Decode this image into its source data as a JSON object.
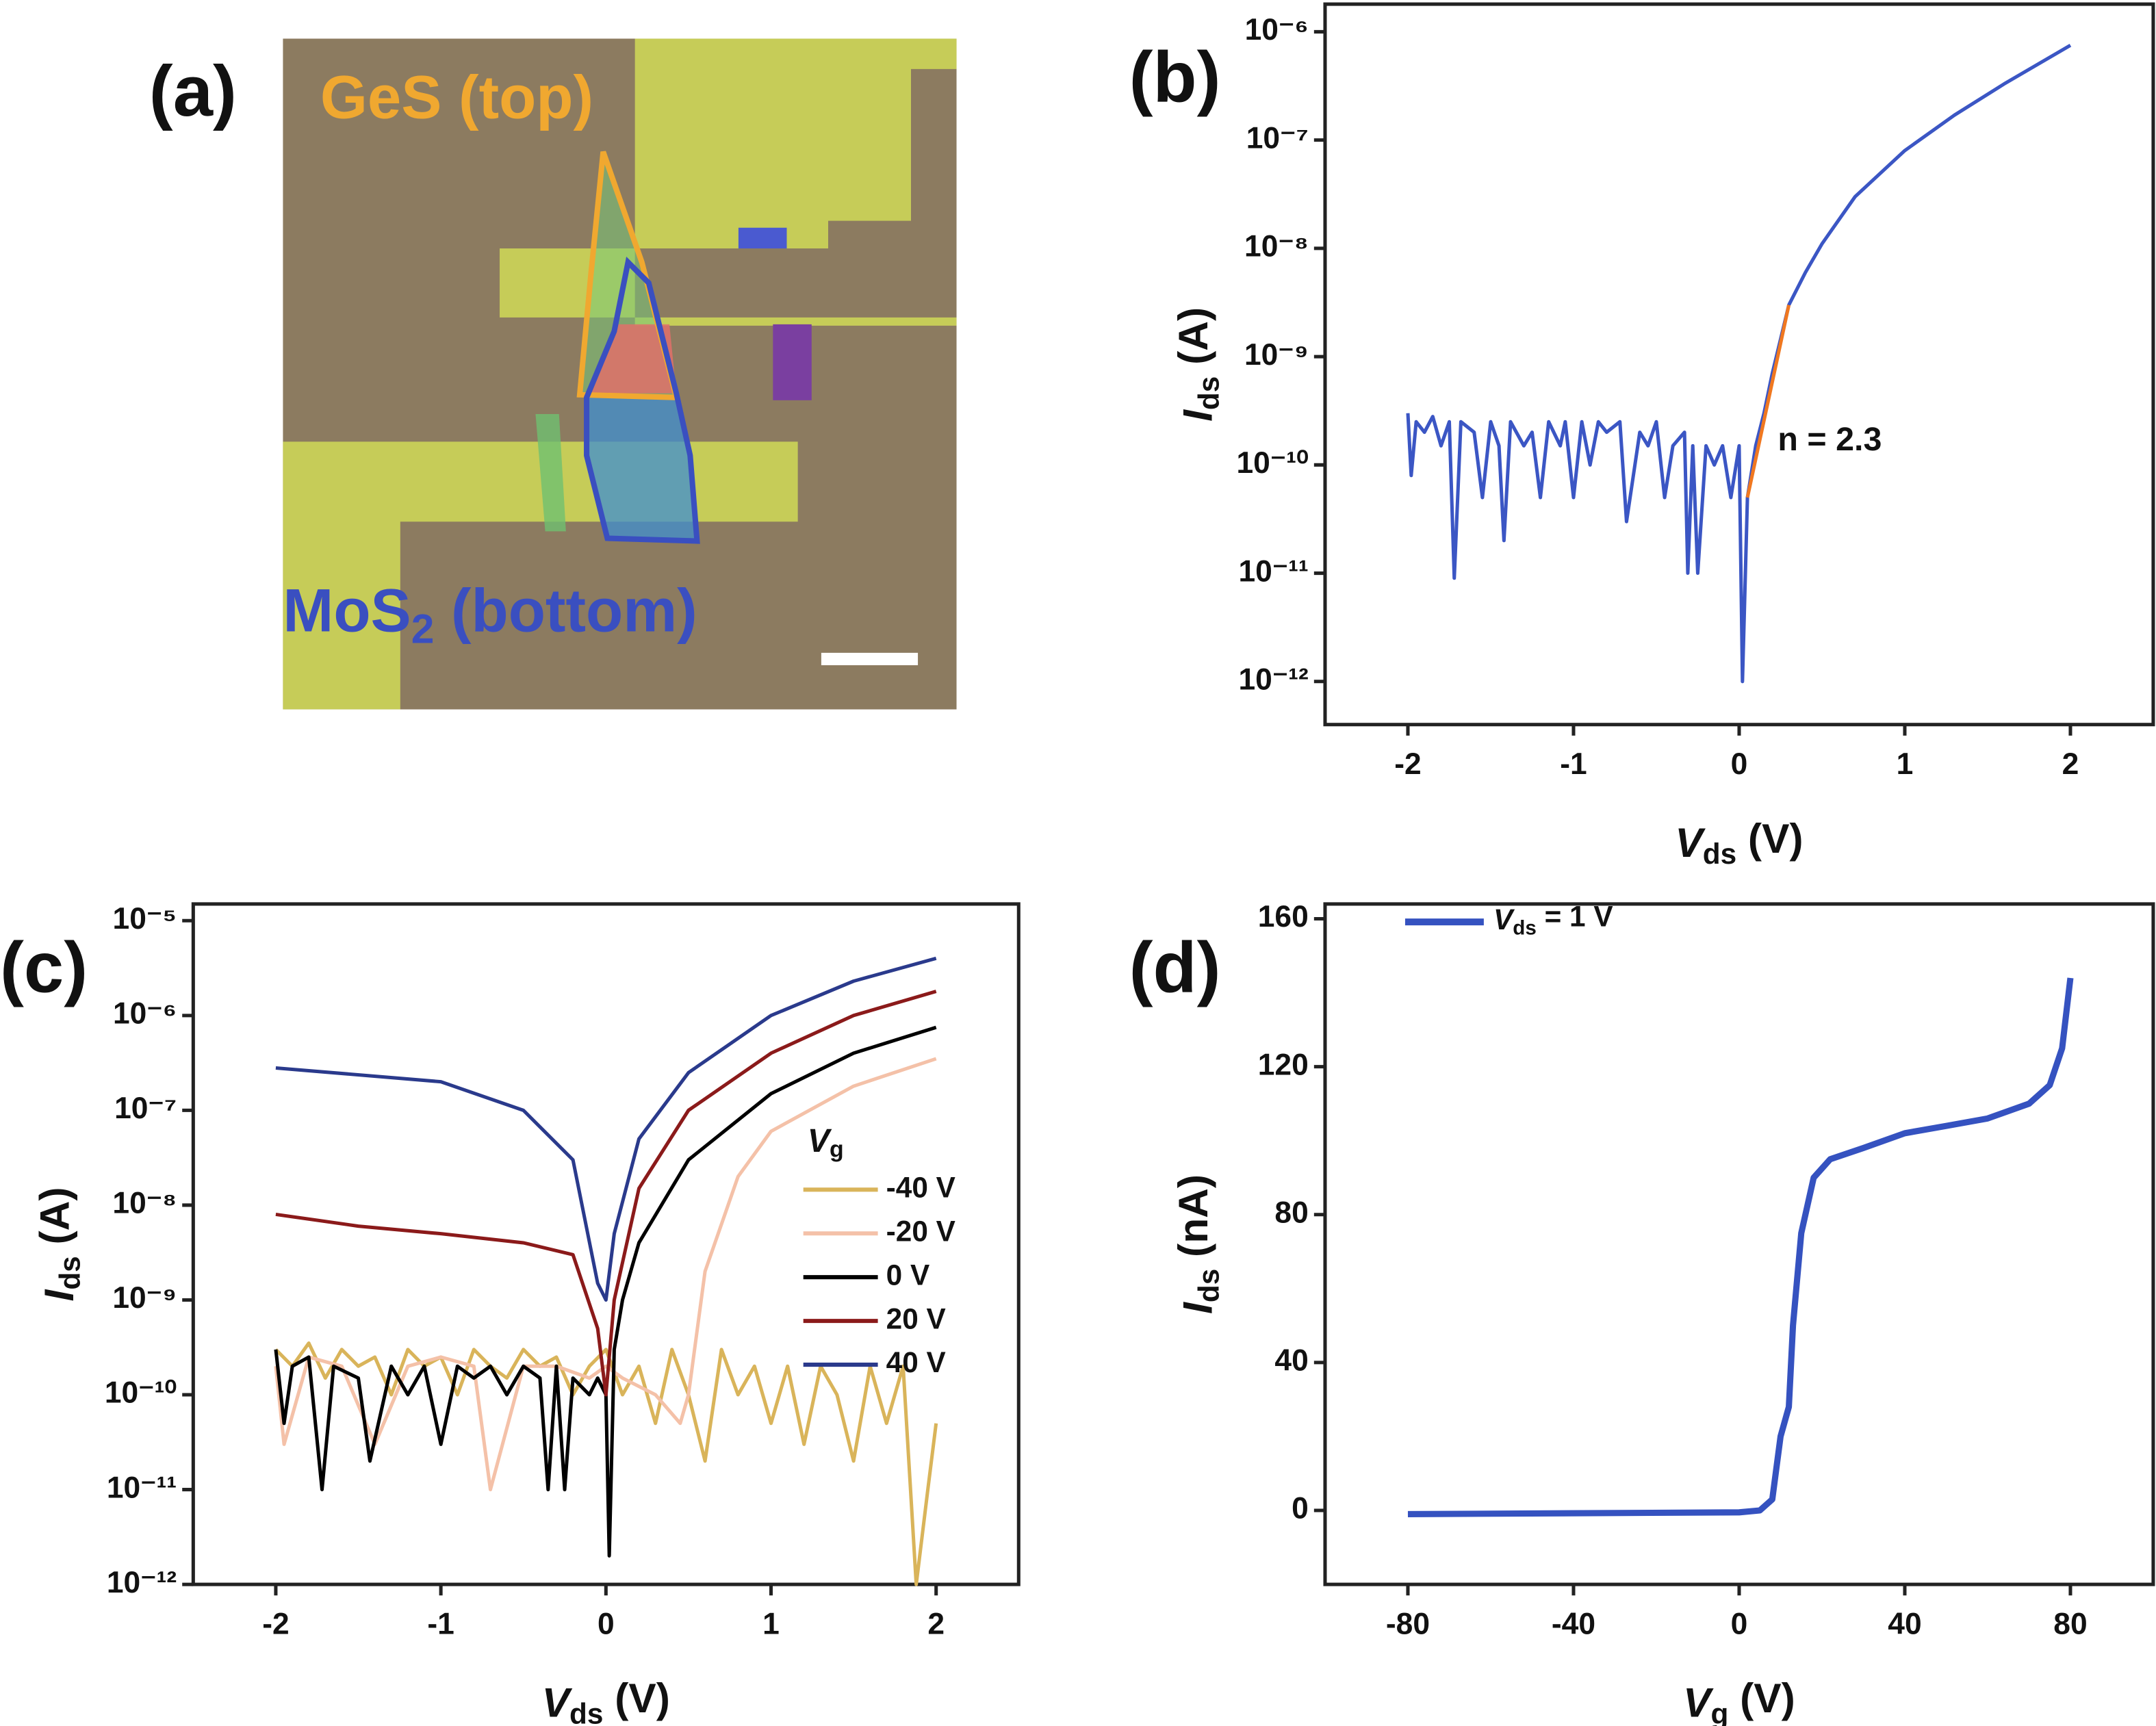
{
  "image_panel": {
    "panel_label": "(a)",
    "top_label": "GeS (top)",
    "bottom_label": {
      "main": "MoS",
      "sub": "2",
      "rest": " (bottom)"
    }
  },
  "chart_data": [
    {
      "type": "line",
      "panel_label": "(b)",
      "ylog": true,
      "xlabel": {
        "main": "V",
        "sub": "ds",
        "unit": " (V)"
      },
      "ylabel": {
        "main": "I",
        "sub": "ds",
        "unit": " (A)"
      },
      "xlim": [
        -2.5,
        2.5
      ],
      "xticks": [
        -2,
        -1,
        0,
        1,
        2
      ],
      "ylim": [
        4e-13,
        1.8e-06
      ],
      "yticks": [
        {
          "value": 1e-12,
          "label": "10⁻¹²"
        },
        {
          "value": 1e-11,
          "label": "10⁻¹¹"
        },
        {
          "value": 1e-10,
          "label": "10⁻¹⁰"
        },
        {
          "value": 1e-09,
          "label": "10⁻⁹"
        },
        {
          "value": 1e-08,
          "label": "10⁻⁸"
        },
        {
          "value": 1e-07,
          "label": "10⁻⁷"
        },
        {
          "value": 1e-06,
          "label": "10⁻⁶"
        }
      ],
      "annotation": "n = 2.3",
      "series": [
        {
          "color": "#3b56c4",
          "x": [
            -2,
            -1.98,
            -1.95,
            -1.9,
            -1.85,
            -1.8,
            -1.75,
            -1.72,
            -1.68,
            -1.6,
            -1.55,
            -1.5,
            -1.45,
            -1.42,
            -1.38,
            -1.3,
            -1.25,
            -1.2,
            -1.15,
            -1.08,
            -1.05,
            -1,
            -0.95,
            -0.9,
            -0.85,
            -0.8,
            -0.72,
            -0.68,
            -0.6,
            -0.55,
            -0.5,
            -0.45,
            -0.4,
            -0.33,
            -0.31,
            -0.28,
            -0.25,
            -0.2,
            -0.15,
            -0.1,
            -0.05,
            0,
            0.02,
            0.05,
            0.1,
            0.15,
            0.2,
            0.3,
            0.4,
            0.5,
            0.7,
            1,
            1.3,
            1.6,
            2
          ],
          "values": [
            3e-10,
            8e-11,
            2.5e-10,
            2e-10,
            2.8e-10,
            1.5e-10,
            2.5e-10,
            9e-12,
            2.5e-10,
            2e-10,
            5e-11,
            2.5e-10,
            1.5e-10,
            2e-11,
            2.5e-10,
            1.5e-10,
            2e-10,
            5e-11,
            2.5e-10,
            1.5e-10,
            2.5e-10,
            5e-11,
            2.5e-10,
            1e-10,
            2.5e-10,
            2e-10,
            2.5e-10,
            3e-11,
            2e-10,
            1.5e-10,
            2.5e-10,
            5e-11,
            1.5e-10,
            2e-10,
            1e-11,
            1.5e-10,
            1e-11,
            1.5e-10,
            1e-10,
            1.5e-10,
            5e-11,
            1.5e-10,
            1e-12,
            5e-11,
            1.5e-10,
            3e-10,
            7e-10,
            3e-09,
            6e-09,
            1.1e-08,
            3e-08,
            8e-08,
            1.7e-07,
            3.3e-07,
            7.5e-07
          ]
        },
        {
          "color": "#f07820",
          "x": [
            0.05,
            0.3
          ],
          "values": [
            5e-11,
            3e-09
          ]
        }
      ]
    },
    {
      "type": "line",
      "panel_label": "(c)",
      "ylog": true,
      "xlabel": {
        "main": "V",
        "sub": "ds",
        "unit": " (V)"
      },
      "ylabel": {
        "main": "I",
        "sub": "ds",
        "unit": " (A)"
      },
      "xlim": [
        -2.5,
        2.5
      ],
      "xticks": [
        -2,
        -1,
        0,
        1,
        2
      ],
      "ylim": [
        1e-12,
        1.5e-05
      ],
      "yticks": [
        {
          "value": 1e-12,
          "label": "10⁻¹²"
        },
        {
          "value": 1e-11,
          "label": "10⁻¹¹"
        },
        {
          "value": 1e-10,
          "label": "10⁻¹⁰"
        },
        {
          "value": 1e-09,
          "label": "10⁻⁹"
        },
        {
          "value": 1e-08,
          "label": "10⁻⁸"
        },
        {
          "value": 1e-07,
          "label": "10⁻⁷"
        },
        {
          "value": 1e-06,
          "label": "10⁻⁶"
        },
        {
          "value": 1e-05,
          "label": "10⁻⁵"
        }
      ],
      "legend_title": {
        "main": "V",
        "sub": "g"
      },
      "series": [
        {
          "name": "-40 V",
          "color": "#d9b45a",
          "x": [
            -2,
            -1.9,
            -1.8,
            -1.7,
            -1.6,
            -1.5,
            -1.4,
            -1.3,
            -1.2,
            -1.1,
            -1,
            -0.9,
            -0.8,
            -0.7,
            -0.6,
            -0.5,
            -0.4,
            -0.3,
            -0.2,
            -0.1,
            0,
            0.1,
            0.2,
            0.3,
            0.4,
            0.5,
            0.6,
            0.7,
            0.8,
            0.9,
            1,
            1.1,
            1.2,
            1.3,
            1.4,
            1.5,
            1.6,
            1.7,
            1.8,
            1.88,
            1.95,
            2
          ],
          "values": [
            3e-10,
            2e-10,
            3.5e-10,
            1.5e-10,
            3e-10,
            2e-10,
            2.5e-10,
            1e-10,
            3e-10,
            2e-10,
            2.5e-10,
            1e-10,
            3e-10,
            2e-10,
            1.5e-10,
            3e-10,
            2e-10,
            2.5e-10,
            1e-10,
            2e-10,
            3e-10,
            1e-10,
            2e-10,
            5e-11,
            3e-10,
            1e-10,
            2e-11,
            3e-10,
            1e-10,
            2e-10,
            5e-11,
            2e-10,
            3e-11,
            2e-10,
            1e-10,
            2e-11,
            2e-10,
            5e-11,
            2e-10,
            1e-12,
            1e-11,
            5e-11
          ]
        },
        {
          "name": "-20 V",
          "color": "#f4c1a8",
          "x": [
            -2,
            -1.95,
            -1.8,
            -1.6,
            -1.4,
            -1.2,
            -1,
            -0.8,
            -0.7,
            -0.5,
            -0.3,
            -0.1,
            0,
            0.1,
            0.3,
            0.45,
            0.5,
            0.6,
            0.8,
            1,
            1.5,
            2
          ],
          "values": [
            2e-10,
            3e-11,
            2.5e-10,
            2e-10,
            3e-11,
            2e-10,
            2.5e-10,
            2e-10,
            1e-11,
            2e-10,
            2e-10,
            1.5e-10,
            2e-10,
            1.5e-10,
            1e-10,
            5e-11,
            1e-10,
            2e-09,
            2e-08,
            6e-08,
            1.8e-07,
            3.5e-07
          ]
        },
        {
          "name": "0 V",
          "color": "#000000",
          "x": [
            -2,
            -1.95,
            -1.9,
            -1.8,
            -1.72,
            -1.65,
            -1.5,
            -1.43,
            -1.3,
            -1.2,
            -1.1,
            -1,
            -0.9,
            -0.8,
            -0.7,
            -0.6,
            -0.5,
            -0.4,
            -0.35,
            -0.3,
            -0.25,
            -0.2,
            -0.1,
            -0.05,
            0,
            0.02,
            0.05,
            0.1,
            0.2,
            0.5,
            1,
            1.5,
            2
          ],
          "values": [
            3e-10,
            5e-11,
            2e-10,
            2.5e-10,
            1e-11,
            2e-10,
            1.5e-10,
            2e-11,
            2e-10,
            1e-10,
            2e-10,
            3e-11,
            2e-10,
            1.5e-10,
            2e-10,
            1e-10,
            2e-10,
            1.5e-10,
            1e-11,
            2e-10,
            1e-11,
            1.5e-10,
            1e-10,
            1.5e-10,
            1e-10,
            2e-12,
            3e-10,
            1e-09,
            4e-09,
            3e-08,
            1.5e-07,
            4e-07,
            7.5e-07
          ]
        },
        {
          "name": "20 V",
          "color": "#8b1a1a",
          "x": [
            -2,
            -1.5,
            -1,
            -0.5,
            -0.2,
            -0.05,
            0,
            0.05,
            0.2,
            0.5,
            1,
            1.5,
            2
          ],
          "values": [
            8e-09,
            6e-09,
            5e-09,
            4e-09,
            3e-09,
            5e-10,
            1e-10,
            1e-09,
            1.5e-08,
            1e-07,
            4e-07,
            1e-06,
            1.8e-06
          ]
        },
        {
          "name": "40 V",
          "color": "#2a3a8c",
          "x": [
            -2,
            -1,
            -0.5,
            -0.2,
            -0.05,
            0,
            0.05,
            0.2,
            0.5,
            1,
            1.5,
            2
          ],
          "values": [
            2.8e-07,
            2e-07,
            1e-07,
            3e-08,
            1.5e-09,
            1e-09,
            5e-09,
            5e-08,
            2.5e-07,
            1e-06,
            2.3e-06,
            4e-06
          ]
        }
      ]
    },
    {
      "type": "line",
      "panel_label": "(d)",
      "ylog": false,
      "xlabel": {
        "main": "V",
        "sub": "g",
        "unit": " (V)"
      },
      "ylabel": {
        "main": "I",
        "sub": "ds",
        "unit": " (nA)"
      },
      "xlim": [
        -100,
        100
      ],
      "xticks": [
        -80,
        -40,
        0,
        40,
        80
      ],
      "ylim": [
        -20,
        164
      ],
      "yticks": [
        0,
        40,
        80,
        120,
        160
      ],
      "series": [
        {
          "name": {
            "main": "V",
            "sub": "ds",
            "rest": " = 1 V"
          },
          "color": "#3552c0",
          "x": [
            -80,
            0,
            5,
            8,
            10,
            12,
            13,
            15,
            18,
            22,
            30,
            40,
            50,
            60,
            70,
            75,
            78,
            80
          ],
          "values": [
            -1,
            -0.5,
            0,
            3,
            20,
            28,
            50,
            75,
            90,
            95,
            98,
            102,
            104,
            106,
            110,
            115,
            125,
            144
          ]
        }
      ]
    }
  ]
}
